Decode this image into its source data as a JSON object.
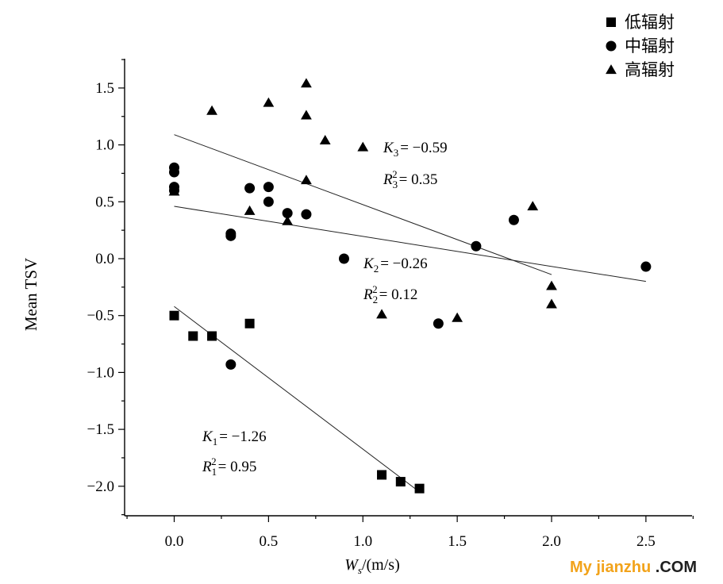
{
  "chart_data": {
    "type": "scatter",
    "xlabel": {
      "symbol": "W",
      "sub": "s",
      "unit": "/(m/s)"
    },
    "ylabel": "Mean TSV",
    "xlim": [
      -0.25,
      2.75
    ],
    "ylim": [
      -2.25,
      1.75
    ],
    "xticks": [
      0.0,
      0.5,
      1.0,
      1.5,
      2.0,
      2.5
    ],
    "xtick_labels": [
      "0.0",
      "0.5",
      "1.0",
      "1.5",
      "2.0",
      "2.5"
    ],
    "yticks": [
      -2.0,
      -1.5,
      -1.0,
      -0.5,
      0.0,
      0.5,
      1.0,
      1.5
    ],
    "ytick_labels": [
      "−2.0",
      "−1.5",
      "−1.0",
      "−0.5",
      "0.0",
      "0.5",
      "1.0",
      "1.5"
    ],
    "grid": false,
    "legend_position": "top-right",
    "series": [
      {
        "name": "低辐射",
        "marker": "square",
        "points": [
          [
            0.0,
            -0.5
          ],
          [
            0.1,
            -0.68
          ],
          [
            0.2,
            -0.68
          ],
          [
            0.4,
            -0.57
          ],
          [
            1.1,
            -1.9
          ],
          [
            1.2,
            -1.96
          ],
          [
            1.3,
            -2.02
          ]
        ],
        "fit": {
          "x": [
            0.0,
            1.3
          ],
          "y": [
            -0.42,
            -2.05
          ]
        }
      },
      {
        "name": "中辐射",
        "marker": "circle",
        "points": [
          [
            0.0,
            0.8
          ],
          [
            0.0,
            0.76
          ],
          [
            0.0,
            0.63
          ],
          [
            0.0,
            0.6
          ],
          [
            0.3,
            0.22
          ],
          [
            0.3,
            0.2
          ],
          [
            0.3,
            -0.93
          ],
          [
            0.4,
            0.62
          ],
          [
            0.5,
            0.63
          ],
          [
            0.5,
            0.5
          ],
          [
            0.6,
            0.4
          ],
          [
            0.7,
            0.39
          ],
          [
            0.9,
            0.0
          ],
          [
            1.4,
            -0.57
          ],
          [
            1.6,
            0.11
          ],
          [
            1.8,
            0.34
          ],
          [
            2.5,
            -0.07
          ]
        ],
        "fit": {
          "x": [
            0.0,
            2.5
          ],
          "y": [
            0.46,
            -0.2
          ]
        }
      },
      {
        "name": "高辐射",
        "marker": "triangle",
        "points": [
          [
            0.0,
            0.59
          ],
          [
            0.2,
            1.3
          ],
          [
            0.4,
            0.42
          ],
          [
            0.5,
            1.37
          ],
          [
            0.6,
            0.33
          ],
          [
            0.7,
            1.54
          ],
          [
            0.7,
            1.26
          ],
          [
            0.7,
            0.69
          ],
          [
            0.8,
            1.04
          ],
          [
            1.0,
            0.98
          ],
          [
            1.1,
            -0.49
          ],
          [
            1.5,
            -0.52
          ],
          [
            1.9,
            0.46
          ],
          [
            2.0,
            -0.24
          ],
          [
            2.0,
            -0.4
          ]
        ],
        "fit": {
          "x": [
            0.0,
            2.0
          ],
          "y": [
            1.09,
            -0.14
          ]
        }
      }
    ],
    "annotations": [
      {
        "sym": "K",
        "sub": "1",
        "text": "= −1.26"
      },
      {
        "sym": "R",
        "sub": "1",
        "sup": "2",
        "text": "= 0.95"
      },
      {
        "sym": "K",
        "sub": "2",
        "text": "= −0.26"
      },
      {
        "sym": "R",
        "sub": "2",
        "sup": "2",
        "text": "= 0.12"
      },
      {
        "sym": "K",
        "sub": "3",
        "text": "= −0.59"
      },
      {
        "sym": "R",
        "sub": "3",
        "sup": "2",
        "text": "= 0.35"
      }
    ]
  },
  "watermark": {
    "part1": "My jianzhu",
    "part2": " .COM",
    "color1": "#f2a31b",
    "color2": "#1f1f1f"
  }
}
